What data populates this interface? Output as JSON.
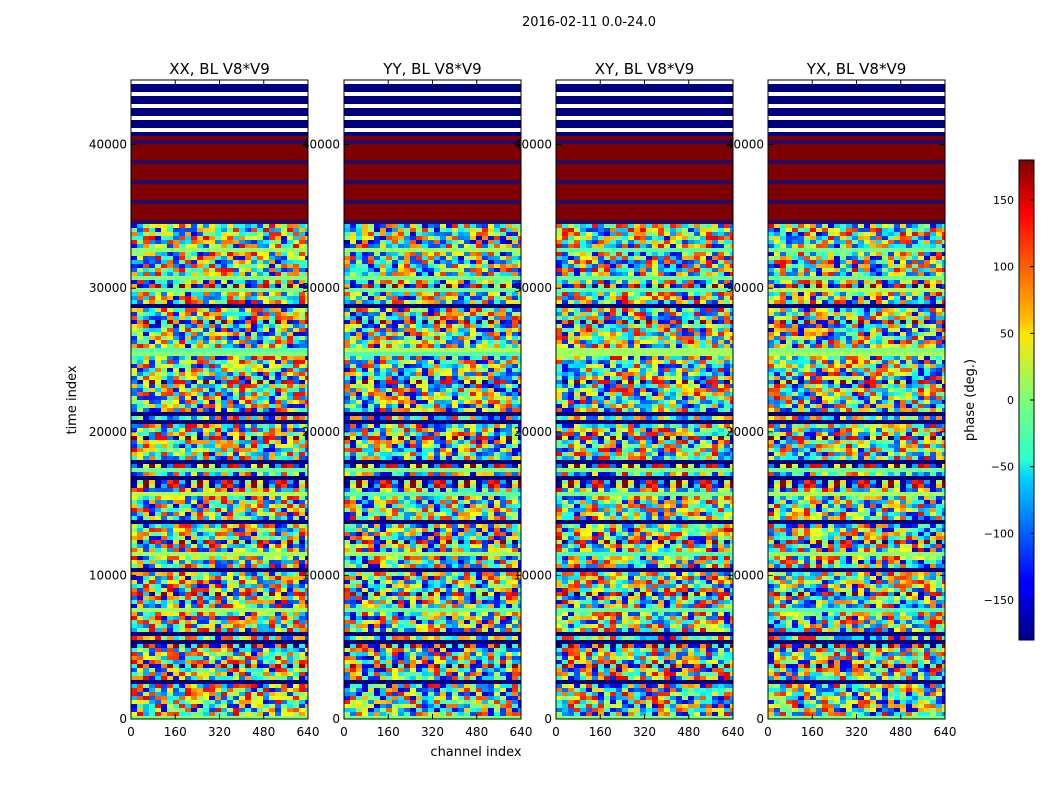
{
  "figure": {
    "suptitle": "2016-02-11 0.0-24.0"
  },
  "chart_data": {
    "type": "heatmap",
    "title": "2016-02-11 0.0-24.0",
    "xlabel": "channel index",
    "ylabel": "time index",
    "xlim": [
      0,
      640
    ],
    "ylim": [
      0,
      44500
    ],
    "x_ticks": [
      0,
      160,
      320,
      480,
      640
    ],
    "y_ticks": [
      0,
      10000,
      20000,
      30000,
      40000
    ],
    "panels": [
      {
        "title": "XX, BL V8*V9",
        "polarization": "XX"
      },
      {
        "title": "YY, BL V8*V9",
        "polarization": "YY"
      },
      {
        "title": "XY, BL V8*V9",
        "polarization": "XY"
      },
      {
        "title": "YX, BL V8*V9",
        "polarization": "YX"
      }
    ],
    "colormap": "jet",
    "colorbar": {
      "label": "phase (deg.)",
      "range": [
        -180,
        180
      ],
      "ticks": [
        150,
        100,
        50,
        0,
        -50,
        -100,
        -150
      ],
      "tick_labels": [
        "150",
        "100",
        "50",
        "0",
        "−50",
        "−100",
        "−150"
      ]
    },
    "regions": [
      {
        "time_range": [
          34500,
          40800
        ],
        "phase": 180,
        "description": "saturated constant-phase block"
      },
      {
        "time_range": [
          40800,
          44500
        ],
        "description": "mostly flagged / low phase rows"
      }
    ]
  }
}
